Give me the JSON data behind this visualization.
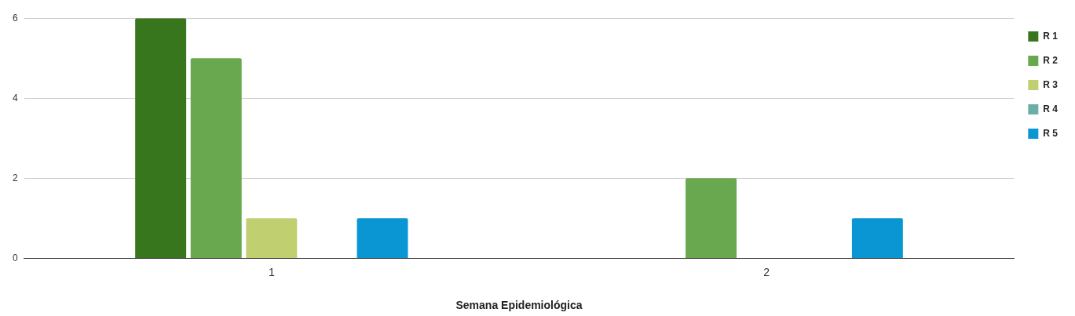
{
  "chart_data": {
    "type": "bar",
    "xlabel": "Semana Epidemiológica",
    "categories": [
      "1",
      "2"
    ],
    "series": [
      {
        "name": "R 1",
        "color": "#38761d",
        "values": [
          6,
          0
        ]
      },
      {
        "name": "R 2",
        "color": "#6aa84f",
        "values": [
          5,
          2
        ]
      },
      {
        "name": "R 3",
        "color": "#c0cf6f",
        "values": [
          1,
          0
        ]
      },
      {
        "name": "R 4",
        "color": "#6aafa5",
        "values": [
          0,
          0
        ]
      },
      {
        "name": "R 5",
        "color": "#0996d3",
        "values": [
          1,
          1
        ]
      }
    ],
    "ylim": [
      0,
      6
    ],
    "yticks": [
      0,
      2,
      4,
      6
    ],
    "grid": "y",
    "legend": "right"
  }
}
